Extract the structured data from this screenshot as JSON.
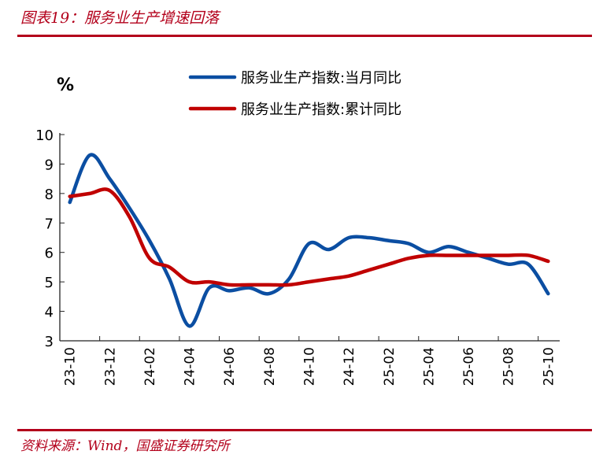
{
  "header": {
    "title": "图表19：服务业生产增速回落"
  },
  "footer": {
    "source": "资料来源：Wind，国盛证券研究所"
  },
  "chart_data": {
    "type": "line",
    "title": "",
    "ylabel": "%",
    "xlabel": "",
    "ylim": [
      3,
      10
    ],
    "yticks": [
      3,
      4,
      5,
      6,
      7,
      8,
      9,
      10
    ],
    "x": [
      "23-10",
      "23-11",
      "23-12",
      "24-01",
      "24-02",
      "24-03",
      "24-04",
      "24-05",
      "24-06",
      "24-07",
      "24-08",
      "24-09",
      "24-10",
      "24-11",
      "24-12",
      "25-01",
      "25-02",
      "25-03",
      "25-04",
      "25-05",
      "25-06",
      "25-07",
      "25-08",
      "25-09",
      "25-10"
    ],
    "xtick_labels": [
      "23-10",
      "23-12",
      "24-02",
      "24-04",
      "24-06",
      "24-08",
      "24-10",
      "24-12",
      "25-02",
      "25-04",
      "25-06",
      "25-08",
      "25-10"
    ],
    "legend_position": "top-right",
    "series": [
      {
        "name": "服务业生产指数:当月同比",
        "color": "#0b4ea2",
        "values": [
          7.7,
          9.3,
          8.5,
          7.5,
          6.4,
          5.1,
          3.5,
          4.8,
          4.7,
          4.8,
          4.6,
          5.1,
          6.3,
          6.1,
          6.5,
          6.5,
          6.4,
          6.3,
          6.0,
          6.2,
          6.0,
          5.8,
          5.6,
          5.6,
          4.6
        ]
      },
      {
        "name": "服务业生产指数:累计同比",
        "color": "#c00000",
        "values": [
          7.9,
          8.0,
          8.1,
          7.2,
          5.8,
          5.5,
          5.0,
          5.0,
          4.9,
          4.9,
          4.9,
          4.9,
          5.0,
          5.1,
          5.2,
          5.4,
          5.6,
          5.8,
          5.9,
          5.9,
          5.9,
          5.9,
          5.9,
          5.9,
          5.7
        ]
      }
    ]
  }
}
